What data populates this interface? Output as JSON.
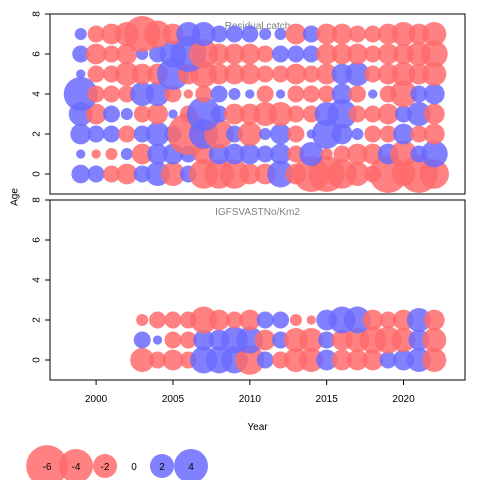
{
  "chart_data": [
    {
      "type": "scatter",
      "subtype": "bubble",
      "title": "Residual catch",
      "ylabel": "Age",
      "xlim": [
        1997,
        2024
      ],
      "ylim": [
        -1,
        8
      ],
      "yticks": [
        0,
        2,
        4,
        6,
        8
      ],
      "negative_color": "#ff6b6b",
      "positive_color": "#6b6bff",
      "years": [
        1999,
        2000,
        2001,
        2002,
        2003,
        2004,
        2005,
        2006,
        2007,
        2008,
        2009,
        2010,
        2011,
        2012,
        2013,
        2014,
        2015,
        2016,
        2017,
        2018,
        2019,
        2020,
        2021,
        2022
      ],
      "ages": [
        0,
        1,
        2,
        3,
        4,
        5,
        6,
        7
      ],
      "residuals": [
        [
          1.2,
          1.0,
          -1.0,
          -1.5,
          1.0,
          2.0,
          -2.0,
          1.0,
          -3.0,
          -3.0,
          -3.0,
          -1.5,
          -1.5,
          2.5,
          -1.5,
          -4.5,
          -4.5,
          -3.0,
          -2.0,
          -1.0,
          -5.0,
          -2.0,
          -5.0,
          -3.0
        ],
        [
          0.3,
          -0.3,
          -0.5,
          0.5,
          -1.5,
          1.5,
          1.5,
          1.0,
          -1.5,
          1.5,
          1.5,
          1.5,
          1.0,
          1.5,
          -1.0,
          2.0,
          -0.5,
          -1.0,
          -1.5,
          -1.5,
          1.5,
          -2.5,
          1.0,
          2.5
        ],
        [
          1.5,
          1.0,
          1.0,
          -1.0,
          1.0,
          2.0,
          1.0,
          -6.0,
          3.0,
          -3.0,
          1.0,
          -2.0,
          0.5,
          1.5,
          -1.0,
          0.3,
          3.0,
          1.5,
          0.5,
          -1.0,
          -1.0,
          1.5,
          -1.0,
          -1.5
        ],
        [
          2.0,
          -1.5,
          1.0,
          0.5,
          -1.0,
          -1.5,
          0.3,
          -1.0,
          4.0,
          1.0,
          -1.5,
          -1.5,
          -2.0,
          -2.0,
          -1.0,
          -1.0,
          2.0,
          3.0,
          -1.0,
          -1.0,
          -1.5,
          1.0,
          2.0,
          -1.5
        ],
        [
          4.0,
          -1.0,
          -1.0,
          -1.0,
          2.0,
          2.0,
          -1.0,
          -0.3,
          -1.0,
          1.0,
          0.5,
          0.3,
          -1.0,
          0.3,
          -1.0,
          -1.0,
          -1.0,
          1.5,
          -1.0,
          0.3,
          -1.0,
          -2.5,
          1.0,
          1.5
        ],
        [
          0.3,
          -1.0,
          -1.0,
          -2.0,
          -1.5,
          -1.5,
          3.5,
          -1.5,
          -2.5,
          -1.5,
          -1.5,
          -1.5,
          -1.0,
          -1.0,
          -1.5,
          -1.0,
          -1.5,
          1.5,
          2.0,
          -1.0,
          -1.5,
          -2.0,
          -1.5,
          -2.0
        ],
        [
          1.0,
          -1.5,
          -1.0,
          -1.5,
          0.5,
          1.0,
          2.5,
          4.5,
          -3.0,
          -1.5,
          -1.5,
          -1.5,
          -1.0,
          1.0,
          1.0,
          1.0,
          -1.5,
          -1.5,
          -1.5,
          -1.0,
          -1.5,
          -1.5,
          -2.0,
          -2.5
        ],
        [
          0.5,
          -1.0,
          -1.5,
          -2.0,
          -4.5,
          -2.5,
          -1.5,
          2.0,
          2.0,
          1.0,
          1.0,
          1.0,
          0.5,
          0.5,
          -1.5,
          1.0,
          -1.5,
          -1.5,
          -1.0,
          -1.0,
          -1.5,
          -2.0,
          -1.5,
          -2.0
        ]
      ]
    },
    {
      "type": "scatter",
      "subtype": "bubble",
      "title": "IGFSVASTNo/Km2",
      "xlabel": "Year",
      "ylabel": "Age",
      "xlim": [
        1997,
        2024
      ],
      "ylim": [
        -1,
        8
      ],
      "xticks": [
        2000,
        2005,
        2010,
        2015,
        2020
      ],
      "yticks": [
        0,
        2,
        4,
        6,
        8
      ],
      "negative_color": "#ff6b6b",
      "positive_color": "#6b6bff",
      "years": [
        2003,
        2004,
        2005,
        2006,
        2007,
        2008,
        2009,
        2010,
        2011,
        2012,
        2013,
        2014,
        2015,
        2016,
        2017,
        2018,
        2019,
        2020,
        2021,
        2022
      ],
      "ages": [
        0,
        1,
        2
      ],
      "residuals": [
        [
          -2.0,
          -1.0,
          -1.5,
          -1.0,
          2.5,
          2.5,
          2.5,
          -3.0,
          1.0,
          -1.0,
          -2.0,
          -2.0,
          1.5,
          -1.5,
          -1.5,
          -1.5,
          1.0,
          1.5,
          2.0,
          -2.0
        ],
        [
          1.0,
          0.3,
          -1.0,
          -1.0,
          1.5,
          1.5,
          2.5,
          2.5,
          -1.5,
          1.0,
          -2.0,
          -2.0,
          1.0,
          -1.5,
          -2.0,
          -2.5,
          -2.5,
          -2.0,
          1.5,
          -2.0
        ],
        [
          -0.5,
          -1.0,
          -1.0,
          -1.0,
          -2.5,
          -1.5,
          -1.0,
          -1.5,
          1.0,
          1.0,
          -0.5,
          -0.3,
          1.5,
          2.5,
          2.5,
          -1.5,
          -1.0,
          -1.5,
          2.0,
          -1.5
        ]
      ]
    }
  ],
  "legend": {
    "values": [
      -6,
      -4,
      -2,
      0,
      2,
      4
    ],
    "labels": [
      "-6",
      "-4",
      "-2",
      "0",
      "2",
      "4"
    ]
  }
}
